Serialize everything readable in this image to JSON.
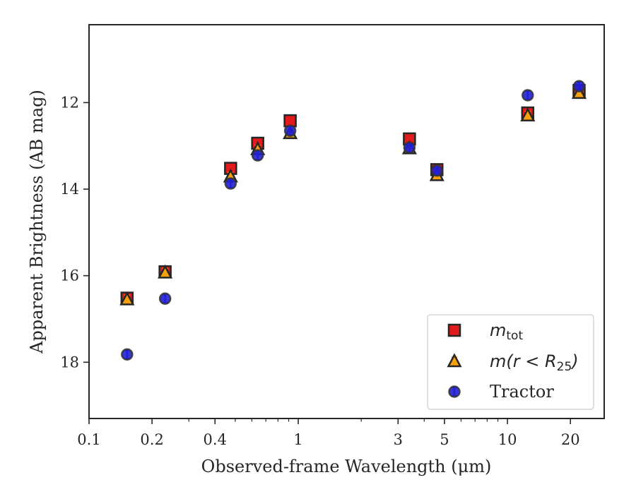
{
  "chart_data": {
    "type": "scatter",
    "xlabel": "Observed-frame Wavelength (μm)",
    "ylabel": "Apparent Brightness (AB mag)",
    "xscale": "log",
    "xlim": [
      0.1,
      29
    ],
    "ylim": [
      19.3,
      10.2
    ],
    "y_inverted": true,
    "x_tick_labels": [
      "0.1",
      "0.2",
      "0.4",
      "1",
      "3",
      "5",
      "10",
      "20"
    ],
    "x_ticks": [
      0.1,
      0.2,
      0.4,
      1,
      3,
      5,
      10,
      20
    ],
    "y_tick_labels": [
      "12",
      "14",
      "16",
      "18"
    ],
    "y_ticks": [
      12,
      14,
      16,
      18
    ],
    "grid": false,
    "legend_position": "lower-right",
    "series": [
      {
        "name": "m_tot",
        "legend_main": "m",
        "legend_sub": "tot",
        "marker": "square",
        "color": "#e31a1c",
        "x": [
          0.152,
          0.231,
          0.475,
          0.64,
          0.915,
          3.4,
          4.6,
          12.5,
          22.0
        ],
        "y": [
          16.52,
          15.91,
          13.52,
          12.94,
          12.42,
          12.84,
          13.55,
          12.24,
          11.72
        ]
      },
      {
        "name": "m(r < R_25)",
        "legend_main": "m(r < R",
        "legend_sub": "25",
        "legend_close": ")",
        "marker": "triangle",
        "color": "#f5a00d",
        "x": [
          0.152,
          0.231,
          0.475,
          0.64,
          0.915,
          3.4,
          4.6,
          12.5,
          22.0
        ],
        "y": [
          16.55,
          15.93,
          13.71,
          13.08,
          12.71,
          13.06,
          13.68,
          12.3,
          11.78
        ]
      },
      {
        "name": "Tractor",
        "marker": "circle",
        "color": "#1f1fd6",
        "x": [
          0.152,
          0.231,
          0.475,
          0.64,
          0.915,
          3.4,
          4.6,
          12.5,
          22.0
        ],
        "y": [
          17.82,
          16.53,
          13.87,
          13.22,
          12.65,
          13.04,
          13.57,
          11.83,
          11.62
        ]
      }
    ]
  }
}
